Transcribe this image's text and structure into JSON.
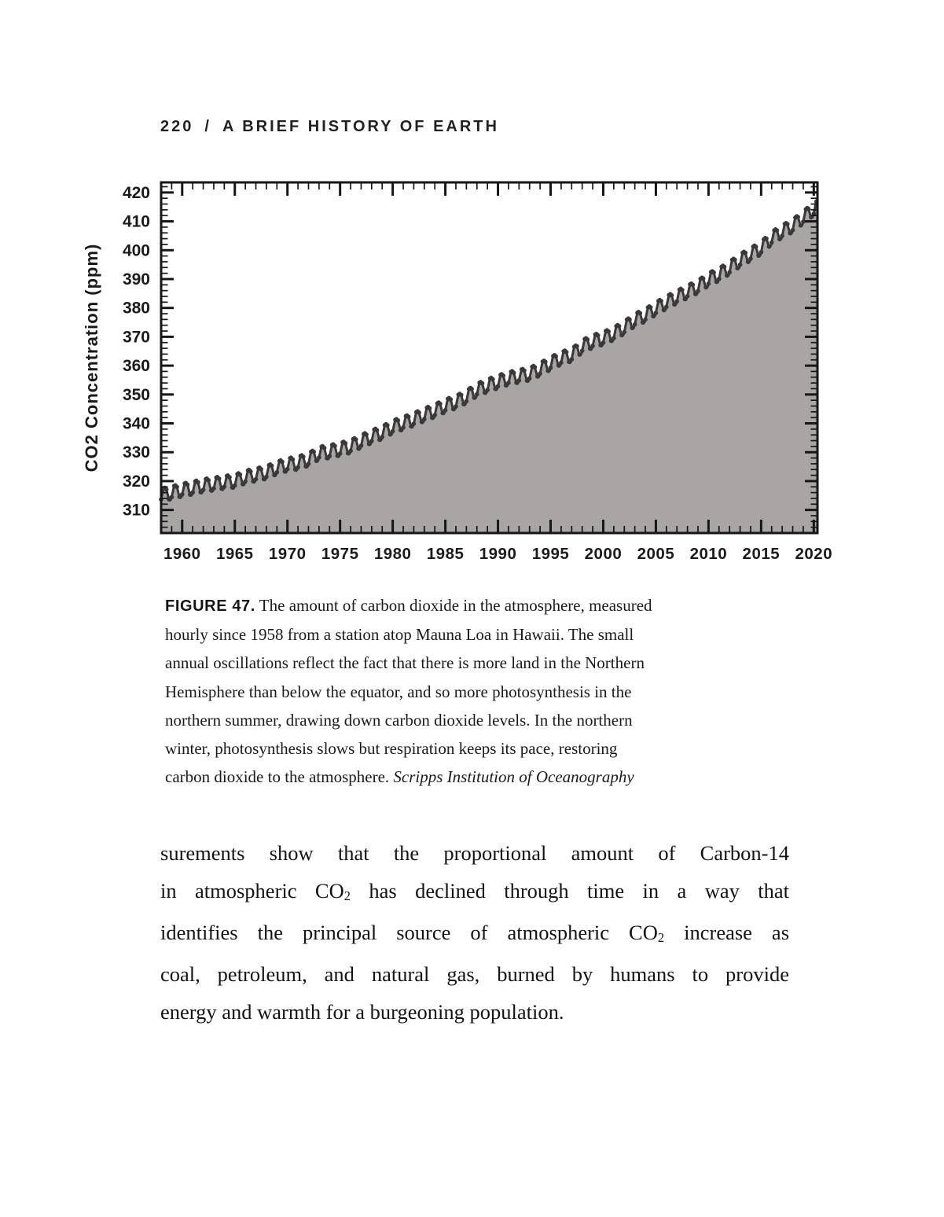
{
  "header": {
    "page_number": "220",
    "separator": "/",
    "title": "A BRIEF HISTORY OF EARTH"
  },
  "colors": {
    "area_fill": "#a8a5a4",
    "curve": "#3a3838",
    "axis": "#161616",
    "text": "#1b1b1b"
  },
  "chart_data": {
    "type": "area",
    "title": "",
    "xlabel": "",
    "ylabel": "CO2 Concentration (ppm)",
    "legend": "none",
    "grid": false,
    "xlim": [
      1958,
      2020.35
    ],
    "ylim": [
      302,
      423.5
    ],
    "x_tick_labels": [
      1960,
      1965,
      1970,
      1975,
      1980,
      1985,
      1990,
      1995,
      2000,
      2005,
      2010,
      2015,
      2020
    ],
    "x_minor_step": 1,
    "y_tick_labels": [
      310,
      320,
      330,
      340,
      350,
      360,
      370,
      380,
      390,
      400,
      410,
      420
    ],
    "y_minor_step": 2,
    "series_name": "CO2 concentration measured at Mauna Loa",
    "seasonal_amplitude_ppm": 2.6,
    "seasonal_peak_month_frac": 0.35,
    "annual_mean_years": [
      1958,
      1959,
      1960,
      1961,
      1962,
      1963,
      1964,
      1965,
      1966,
      1967,
      1968,
      1969,
      1970,
      1971,
      1972,
      1973,
      1974,
      1975,
      1976,
      1977,
      1978,
      1979,
      1980,
      1981,
      1982,
      1983,
      1984,
      1985,
      1986,
      1987,
      1988,
      1989,
      1990,
      1991,
      1992,
      1993,
      1994,
      1995,
      1996,
      1997,
      1998,
      1999,
      2000,
      2001,
      2002,
      2003,
      2004,
      2005,
      2006,
      2007,
      2008,
      2009,
      2010,
      2011,
      2012,
      2013,
      2014,
      2015,
      2016,
      2017,
      2018,
      2019,
      2020,
      2021
    ],
    "annual_mean_ppm": [
      315.2,
      316.0,
      316.9,
      317.6,
      318.5,
      319.0,
      319.6,
      320.0,
      321.4,
      322.2,
      323.0,
      324.6,
      325.7,
      326.3,
      327.5,
      329.7,
      330.2,
      331.1,
      332.0,
      333.8,
      335.4,
      336.8,
      338.8,
      340.1,
      341.4,
      343.0,
      344.4,
      346.1,
      347.4,
      349.2,
      351.6,
      353.1,
      354.4,
      355.6,
      356.4,
      357.1,
      358.8,
      360.8,
      362.6,
      363.7,
      366.7,
      368.4,
      369.5,
      371.1,
      373.2,
      375.8,
      377.5,
      379.8,
      381.9,
      383.8,
      385.6,
      387.4,
      389.9,
      391.6,
      393.9,
      396.5,
      398.6,
      400.8,
      404.2,
      406.5,
      408.5,
      411.4,
      414.2,
      416.5
    ]
  },
  "figure": {
    "caption_lines": [
      {
        "segments": [
          {
            "t": "FIGURE 47.",
            "bold_sans": true
          },
          {
            "t": " The amount of carbon dioxide in the atmosphere, measured"
          }
        ]
      },
      {
        "segments": [
          {
            "t": "hourly since 1958 from a station atop Mauna Loa in Hawaii. The small"
          }
        ]
      },
      {
        "segments": [
          {
            "t": "annual oscillations reflect the fact that there is more land in the Northern"
          }
        ]
      },
      {
        "segments": [
          {
            "t": "Hemisphere than below the equator, and so more photosynthesis in the"
          }
        ]
      },
      {
        "segments": [
          {
            "t": "northern summer, drawing down carbon dioxide levels. In the northern"
          }
        ]
      },
      {
        "segments": [
          {
            "t": "winter, photosynthesis slows but respiration keeps its pace, restoring"
          }
        ]
      },
      {
        "segments": [
          {
            "t": "carbon dioxide to the atmosphere. "
          },
          {
            "t": "Scripps Institution of Oceanography",
            "italic": true
          }
        ]
      }
    ]
  },
  "body": {
    "lines": [
      {
        "justify": true,
        "segments": [
          {
            "t": "surements show that the proportional amount of Carbon-14"
          }
        ]
      },
      {
        "justify": true,
        "segments": [
          {
            "t": "in atmospheric CO"
          },
          {
            "t": "2",
            "sub": true
          },
          {
            "t": " has declined through time in a way that"
          }
        ]
      },
      {
        "justify": true,
        "segments": [
          {
            "t": "identifies the principal source of atmospheric CO"
          },
          {
            "t": "2",
            "sub": true
          },
          {
            "t": " increase as"
          }
        ]
      },
      {
        "justify": true,
        "segments": [
          {
            "t": "coal, petroleum, and natural gas, burned by humans to provide"
          }
        ]
      },
      {
        "justify": false,
        "segments": [
          {
            "t": "energy and warmth for a burgeoning population."
          }
        ]
      }
    ]
  }
}
